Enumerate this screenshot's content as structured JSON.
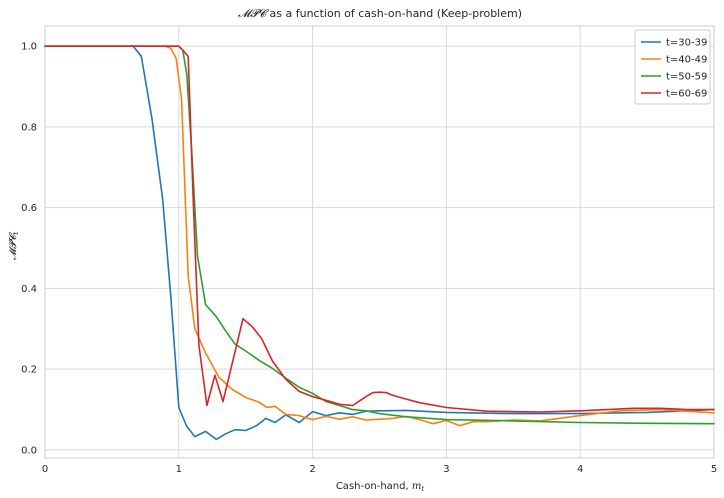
{
  "chart_data": {
    "type": "line",
    "title_math": "𝓜𝓟𝓒",
    "title_rest": " as a function of cash-on-hand (Keep-problem)",
    "xlabel_text": "Cash-on-hand, ",
    "xlabel_var": "m",
    "xlabel_sub": "t",
    "ylabel_var": "𝓜𝓟𝓒",
    "ylabel_sub": "t",
    "xlim": [
      0,
      5
    ],
    "ylim": [
      -0.02,
      1.05
    ],
    "xticks": [
      0,
      1,
      2,
      3,
      4,
      5
    ],
    "yticks": [
      0.0,
      0.2,
      0.4,
      0.6,
      0.8,
      1.0
    ],
    "xtick_labels": [
      "0",
      "1",
      "2",
      "3",
      "4",
      "5"
    ],
    "ytick_labels": [
      "0.0",
      "0.2",
      "0.4",
      "0.6",
      "0.8",
      "1.0"
    ],
    "grid": true,
    "legend_position": "top-right",
    "series": [
      {
        "name": "t=30-39",
        "color": "#1f77b4",
        "x": [
          0,
          0.6,
          0.66,
          0.72,
          0.8,
          0.88,
          0.94,
          1.0,
          1.06,
          1.12,
          1.2,
          1.28,
          1.35,
          1.42,
          1.5,
          1.58,
          1.65,
          1.72,
          1.8,
          1.9,
          2.0,
          2.1,
          2.2,
          2.3,
          2.4,
          2.5,
          2.7,
          3.0,
          3.5,
          4.0,
          4.5,
          5.0
        ],
        "y": [
          1.0,
          1.0,
          1.0,
          0.975,
          0.82,
          0.62,
          0.38,
          0.105,
          0.058,
          0.033,
          0.046,
          0.026,
          0.04,
          0.05,
          0.048,
          0.06,
          0.078,
          0.068,
          0.087,
          0.068,
          0.095,
          0.085,
          0.092,
          0.088,
          0.096,
          0.097,
          0.098,
          0.093,
          0.09,
          0.09,
          0.093,
          0.1
        ]
      },
      {
        "name": "t=40-49",
        "color": "#ff7f0e",
        "x": [
          0,
          0.9,
          0.94,
          0.98,
          1.02,
          1.07,
          1.12,
          1.2,
          1.3,
          1.4,
          1.5,
          1.6,
          1.66,
          1.72,
          1.8,
          1.9,
          2.0,
          2.1,
          2.2,
          2.3,
          2.4,
          2.5,
          2.6,
          2.7,
          2.8,
          2.9,
          3.0,
          3.1,
          3.2,
          3.3,
          3.5,
          3.7,
          4.0,
          4.3,
          4.6,
          5.0
        ],
        "y": [
          1.0,
          1.0,
          0.995,
          0.97,
          0.87,
          0.43,
          0.3,
          0.24,
          0.18,
          0.15,
          0.13,
          0.118,
          0.105,
          0.108,
          0.088,
          0.085,
          0.075,
          0.083,
          0.076,
          0.082,
          0.074,
          0.076,
          0.078,
          0.083,
          0.075,
          0.065,
          0.073,
          0.06,
          0.07,
          0.07,
          0.074,
          0.072,
          0.085,
          0.097,
          0.1,
          0.092
        ]
      },
      {
        "name": "t=50-59",
        "color": "#2ca02c",
        "x": [
          0,
          1.0,
          1.03,
          1.06,
          1.1,
          1.14,
          1.2,
          1.28,
          1.35,
          1.42,
          1.5,
          1.6,
          1.7,
          1.8,
          1.9,
          2.0,
          2.1,
          2.2,
          2.3,
          2.4,
          2.5,
          2.7,
          3.0,
          3.5,
          4.0,
          4.5,
          5.0
        ],
        "y": [
          1.0,
          1.0,
          0.99,
          0.93,
          0.72,
          0.48,
          0.36,
          0.33,
          0.295,
          0.262,
          0.245,
          0.222,
          0.202,
          0.178,
          0.155,
          0.14,
          0.12,
          0.11,
          0.1,
          0.097,
          0.09,
          0.082,
          0.075,
          0.072,
          0.068,
          0.066,
          0.065
        ]
      },
      {
        "name": "t=60-69",
        "color": "#d62728",
        "x": [
          0,
          1.0,
          1.03,
          1.07,
          1.11,
          1.15,
          1.21,
          1.27,
          1.33,
          1.4,
          1.48,
          1.55,
          1.62,
          1.7,
          1.8,
          1.9,
          2.0,
          2.1,
          2.2,
          2.3,
          2.4,
          2.45,
          2.5,
          2.55,
          2.6,
          2.7,
          2.8,
          3.0,
          3.3,
          3.7,
          4.0,
          4.2,
          4.4,
          4.6,
          4.8,
          5.0
        ],
        "y": [
          1.0,
          1.0,
          0.99,
          0.975,
          0.6,
          0.26,
          0.11,
          0.185,
          0.12,
          0.215,
          0.325,
          0.305,
          0.275,
          0.22,
          0.175,
          0.145,
          0.132,
          0.123,
          0.113,
          0.11,
          0.132,
          0.142,
          0.143,
          0.142,
          0.135,
          0.126,
          0.117,
          0.105,
          0.096,
          0.094,
          0.097,
          0.1,
          0.103,
          0.103,
          0.1,
          0.1
        ]
      }
    ]
  }
}
